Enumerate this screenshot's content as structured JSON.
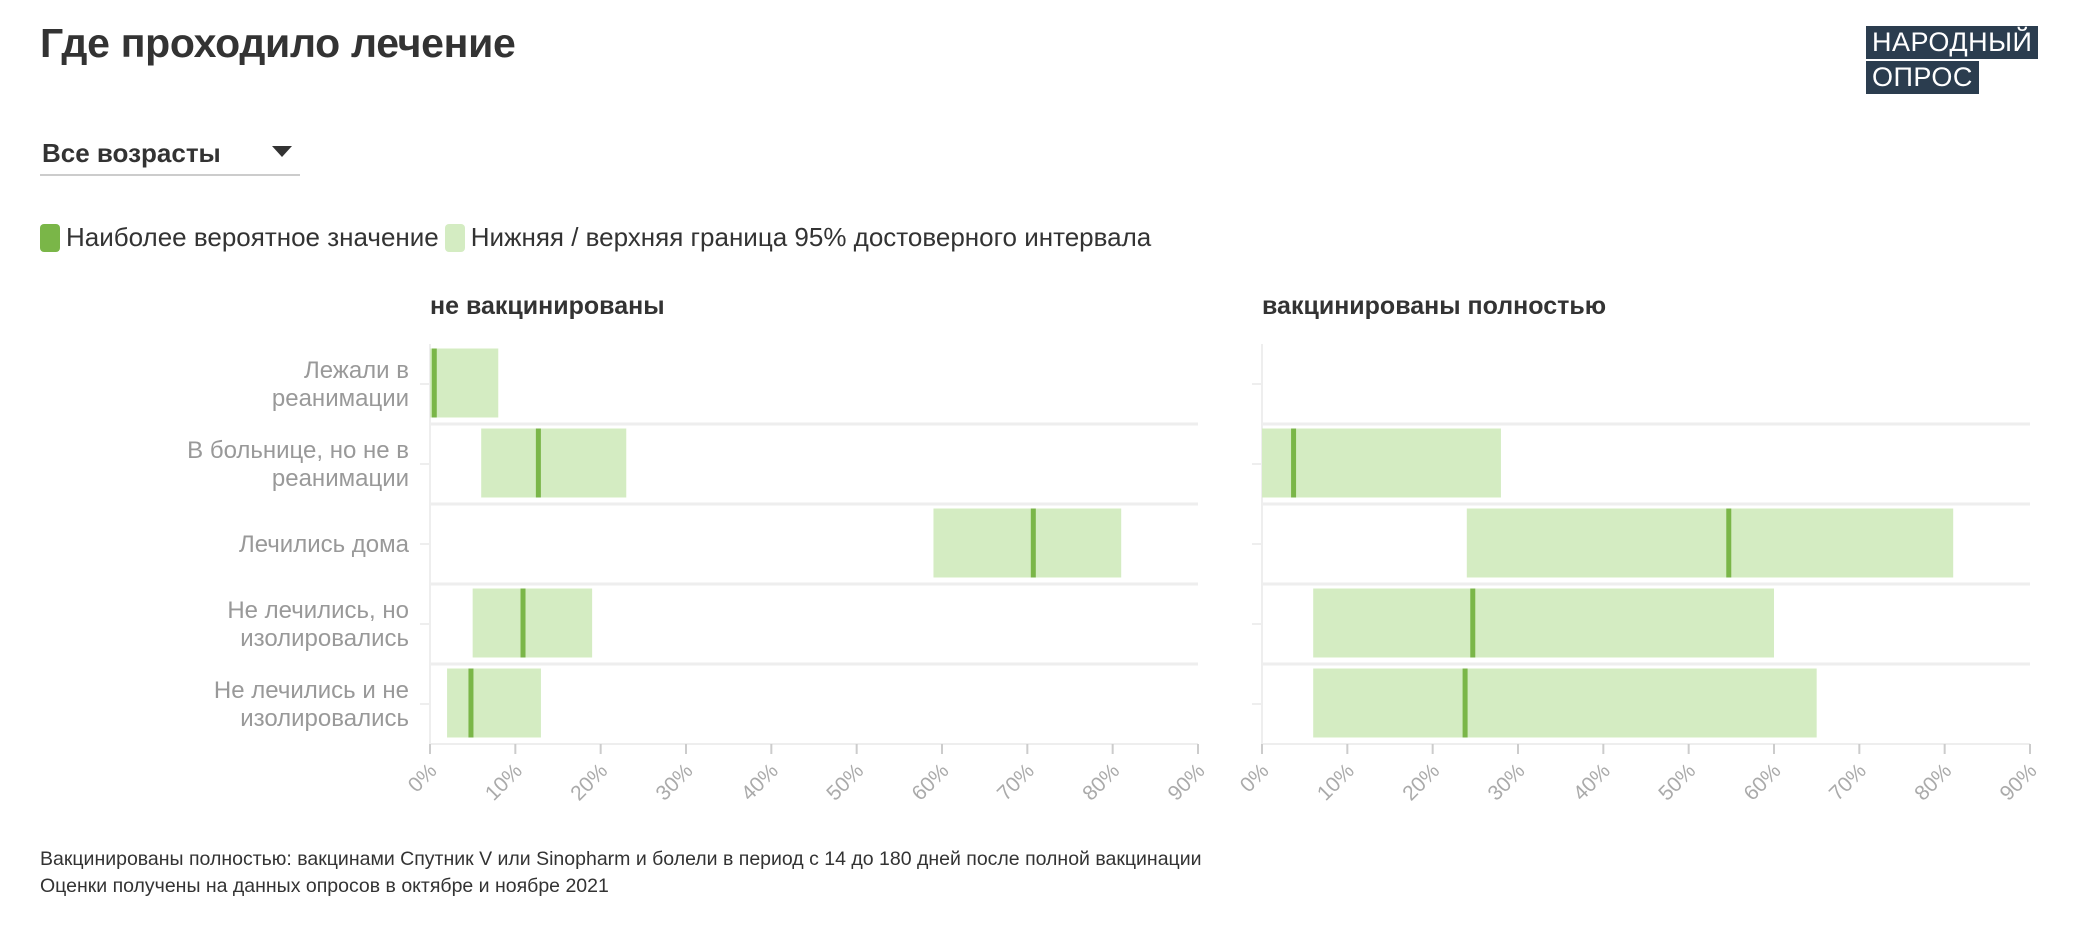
{
  "header": {
    "title": "Где проходило лечение",
    "logo_line1": "НАРОДНЫЙ",
    "logo_line2": "ОПРОС"
  },
  "filter": {
    "selected": "Все возрасты"
  },
  "legend": {
    "point_label": "Наиболее вероятное значение",
    "interval_label": "Нижняя / верхняя граница 95% достоверного интервала"
  },
  "colors": {
    "point": "#7ab648",
    "interval": "#d4ecc2",
    "text": "#333333",
    "category_text": "#999999",
    "gridline": "#eeeeee",
    "logo_bg": "#2b3d4f"
  },
  "chart_data": {
    "type": "range-bar",
    "unit": "%",
    "xlim": [
      0,
      90
    ],
    "ticks": [
      "0%",
      "10%",
      "20%",
      "30%",
      "40%",
      "50%",
      "60%",
      "70%",
      "80%",
      "90%"
    ],
    "categories": [
      [
        "Лежали в",
        "реанимации"
      ],
      [
        "В больнице, но не в",
        "реанимации"
      ],
      [
        "Лечились дома"
      ],
      [
        "Не лечились, но",
        "изолировались"
      ],
      [
        "Не лечились и не",
        "изолировались"
      ]
    ],
    "panels": [
      {
        "title": "не вакцинированы",
        "rows": [
          {
            "low": 0,
            "high": 8,
            "estimate": 0.5
          },
          {
            "low": 6,
            "high": 23,
            "estimate": 12.7
          },
          {
            "low": 59,
            "high": 81,
            "estimate": 70.7
          },
          {
            "low": 5,
            "high": 19,
            "estimate": 10.9
          },
          {
            "low": 2,
            "high": 13,
            "estimate": 4.8
          }
        ]
      },
      {
        "title": "вакцинированы полностью",
        "rows": [
          null,
          {
            "low": 0,
            "high": 28,
            "estimate": 3.7
          },
          {
            "low": 24,
            "high": 81,
            "estimate": 54.7
          },
          {
            "low": 6,
            "high": 60,
            "estimate": 24.7
          },
          {
            "low": 6,
            "high": 65,
            "estimate": 23.8
          }
        ]
      }
    ]
  },
  "notes": [
    "Вакцинированы полностью: вакцинами Спутник V или Sinopharm и болели в период с 14 до 180 дней после полной вакцинации",
    "Оценки получены на данных опросов в октябре и ноябре 2021"
  ]
}
